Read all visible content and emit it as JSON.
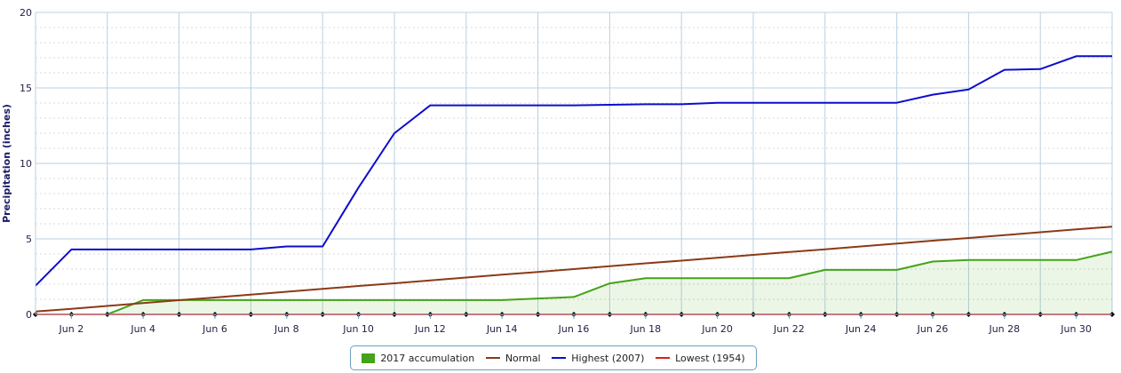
{
  "chart_data": {
    "type": "line",
    "title": "",
    "xlabel": "",
    "ylabel": "Precipitation (inches)",
    "ylim": [
      0,
      20
    ],
    "yticks": [
      0,
      5,
      10,
      15,
      20
    ],
    "xlim": [
      1,
      31
    ],
    "xtick_positions": [
      2,
      4,
      6,
      8,
      10,
      12,
      14,
      16,
      18,
      20,
      22,
      24,
      26,
      28,
      30
    ],
    "xtick_labels": [
      "Jun 2",
      "Jun 4",
      "Jun 6",
      "Jun 8",
      "Jun 10",
      "Jun 12",
      "Jun 14",
      "Jun 16",
      "Jun 18",
      "Jun 20",
      "Jun 22",
      "Jun 24",
      "Jun 26",
      "Jun 28",
      "Jun 30"
    ],
    "grid": true,
    "legend_position": "bottom-center",
    "x": [
      1,
      2,
      3,
      4,
      5,
      6,
      7,
      8,
      9,
      10,
      11,
      12,
      13,
      14,
      15,
      16,
      17,
      18,
      19,
      20,
      21,
      22,
      23,
      24,
      25,
      26,
      27,
      28,
      29,
      30,
      31
    ],
    "series": [
      {
        "name": "2017 accumulation",
        "kind": "area",
        "color": "#44a318",
        "values": [
          0,
          0,
          0,
          0.95,
          0.95,
          0.95,
          0.95,
          0.95,
          0.95,
          0.95,
          0.95,
          0.95,
          0.95,
          0.95,
          1.05,
          1.15,
          2.05,
          2.4,
          2.4,
          2.4,
          2.4,
          2.4,
          2.95,
          2.95,
          2.95,
          3.5,
          3.6,
          3.6,
          3.6,
          3.6,
          4.15
        ]
      },
      {
        "name": "Normal",
        "kind": "line",
        "color": "#8b3a16",
        "values": [
          0.19,
          0.37,
          0.56,
          0.75,
          0.94,
          1.12,
          1.31,
          1.5,
          1.69,
          1.88,
          2.06,
          2.25,
          2.44,
          2.63,
          2.81,
          3.0,
          3.19,
          3.38,
          3.56,
          3.75,
          3.94,
          4.13,
          4.31,
          4.5,
          4.69,
          4.88,
          5.06,
          5.25,
          5.44,
          5.63,
          5.81
        ]
      },
      {
        "name": "Highest (2007)",
        "kind": "line",
        "color": "#0d0dcc",
        "values": [
          1.9,
          4.3,
          4.3,
          4.3,
          4.3,
          4.3,
          4.3,
          4.5,
          4.5,
          8.4,
          12.0,
          13.85,
          13.85,
          13.85,
          13.85,
          13.85,
          13.88,
          13.92,
          13.92,
          14.02,
          14.02,
          14.02,
          14.02,
          14.02,
          14.02,
          14.55,
          14.9,
          16.2,
          16.25,
          17.1,
          17.1
        ]
      },
      {
        "name": "Lowest (1954)",
        "kind": "line",
        "color": "#d42020",
        "values": [
          0,
          0,
          0,
          0,
          0,
          0,
          0,
          0,
          0,
          0,
          0,
          0,
          0,
          0,
          0,
          0,
          0,
          0,
          0,
          0,
          0,
          0,
          0,
          0,
          0,
          0,
          0,
          0,
          0,
          0,
          0
        ]
      }
    ]
  }
}
